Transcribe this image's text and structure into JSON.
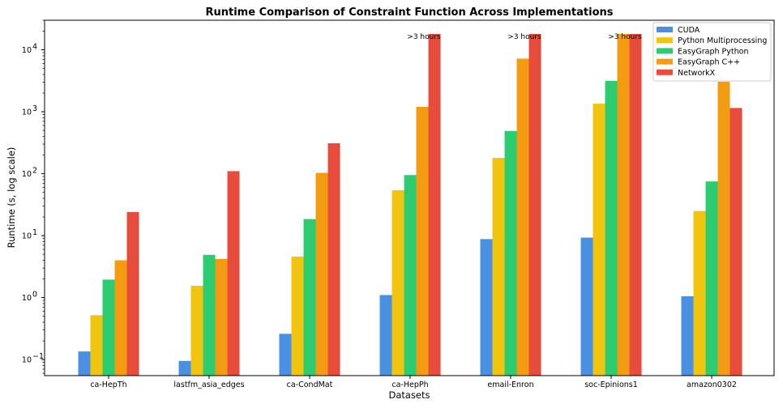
{
  "chart_data": {
    "type": "bar",
    "title": "Runtime Comparison of Constraint Function Across Implementations",
    "xlabel": "Datasets",
    "ylabel": "Runtime (s, log scale)",
    "yscale": "log",
    "ylim": [
      0.055,
      30000
    ],
    "y_ticks": [
      {
        "value": 0.1,
        "base": "10",
        "exp": "−1"
      },
      {
        "value": 1,
        "base": "10",
        "exp": "0"
      },
      {
        "value": 10,
        "base": "10",
        "exp": "1"
      },
      {
        "value": 100,
        "base": "10",
        "exp": "2"
      },
      {
        "value": 1000,
        "base": "10",
        "exp": "3"
      },
      {
        "value": 10000,
        "base": "10",
        "exp": "4"
      }
    ],
    "grid": false,
    "legend_position": "top-right",
    "categories": [
      "ca-HepTh",
      "lastfm_asia_edges",
      "ca-CondMat",
      "ca-HepPh",
      "email-Enron",
      "soc-Epinions1",
      "amazon0302"
    ],
    "series": [
      {
        "name": "CUDA",
        "color": "#4a90e2",
        "values": [
          0.135,
          0.095,
          0.26,
          1.1,
          8.8,
          9.3,
          1.05
        ]
      },
      {
        "name": "Python Multiprocessing",
        "color": "#f1c40f",
        "values": [
          0.52,
          1.55,
          4.6,
          54,
          180,
          1350,
          25
        ]
      },
      {
        "name": "EasyGraph Python",
        "color": "#2ecc71",
        "values": [
          1.95,
          4.9,
          18.5,
          95,
          490,
          3150,
          75
        ]
      },
      {
        "name": "EasyGraph C++",
        "color": "#f39c12",
        "values": [
          4.0,
          4.2,
          103,
          1200,
          7200,
          18000,
          3050
        ]
      },
      {
        "name": "NetworkX",
        "color": "#e74c3c",
        "values": [
          24,
          110,
          310,
          18000,
          18000,
          18000,
          1150
        ]
      }
    ],
    "annotations": [
      {
        "text": ">3 hours",
        "category": "ca-HepPh",
        "series": "NetworkX"
      },
      {
        "text": ">3 hours",
        "category": "email-Enron",
        "series": "NetworkX"
      },
      {
        "text": ">3 hours",
        "category": "soc-Epinions1",
        "series": "NetworkX"
      }
    ]
  }
}
